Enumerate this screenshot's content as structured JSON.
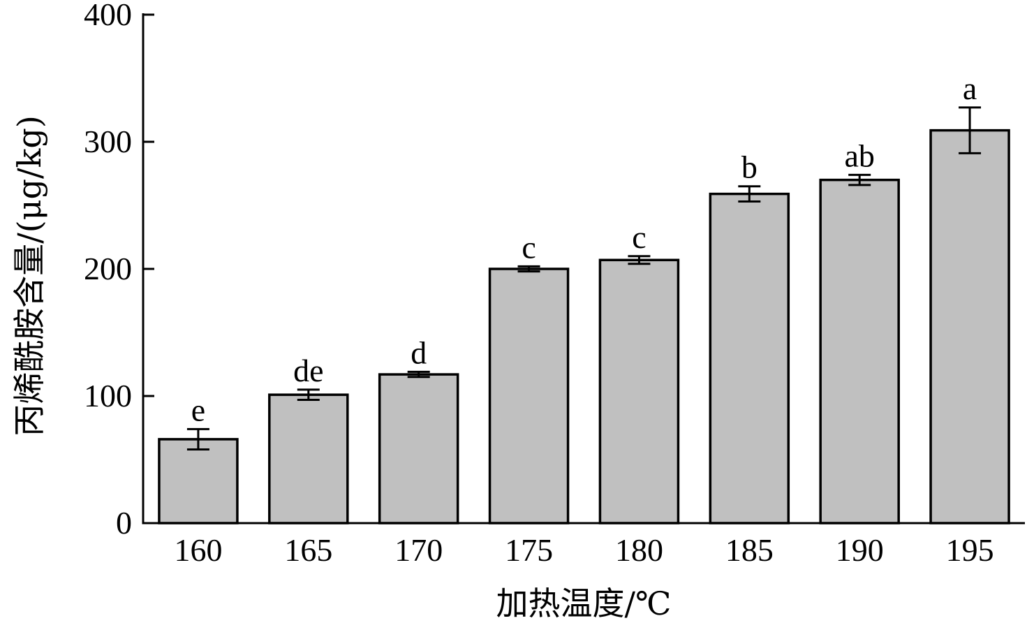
{
  "chart_data": {
    "type": "bar",
    "categories": [
      "160",
      "165",
      "170",
      "175",
      "180",
      "185",
      "190",
      "195"
    ],
    "values": [
      66,
      101,
      117,
      200,
      207,
      259,
      270,
      309
    ],
    "errors": [
      8,
      4,
      2,
      2,
      3,
      6,
      4,
      18
    ],
    "significance": [
      "e",
      "de",
      "d",
      "c",
      "c",
      "b",
      "ab",
      "a"
    ],
    "xlabel": "加热温度/℃",
    "ylabel": "丙烯酰胺含量/(μg/kg)",
    "ylim": [
      0,
      400
    ],
    "yticks": [
      0,
      100,
      200,
      300,
      400
    ],
    "bar_color": "#c0c0c0",
    "error_bars": true,
    "grid": false
  }
}
